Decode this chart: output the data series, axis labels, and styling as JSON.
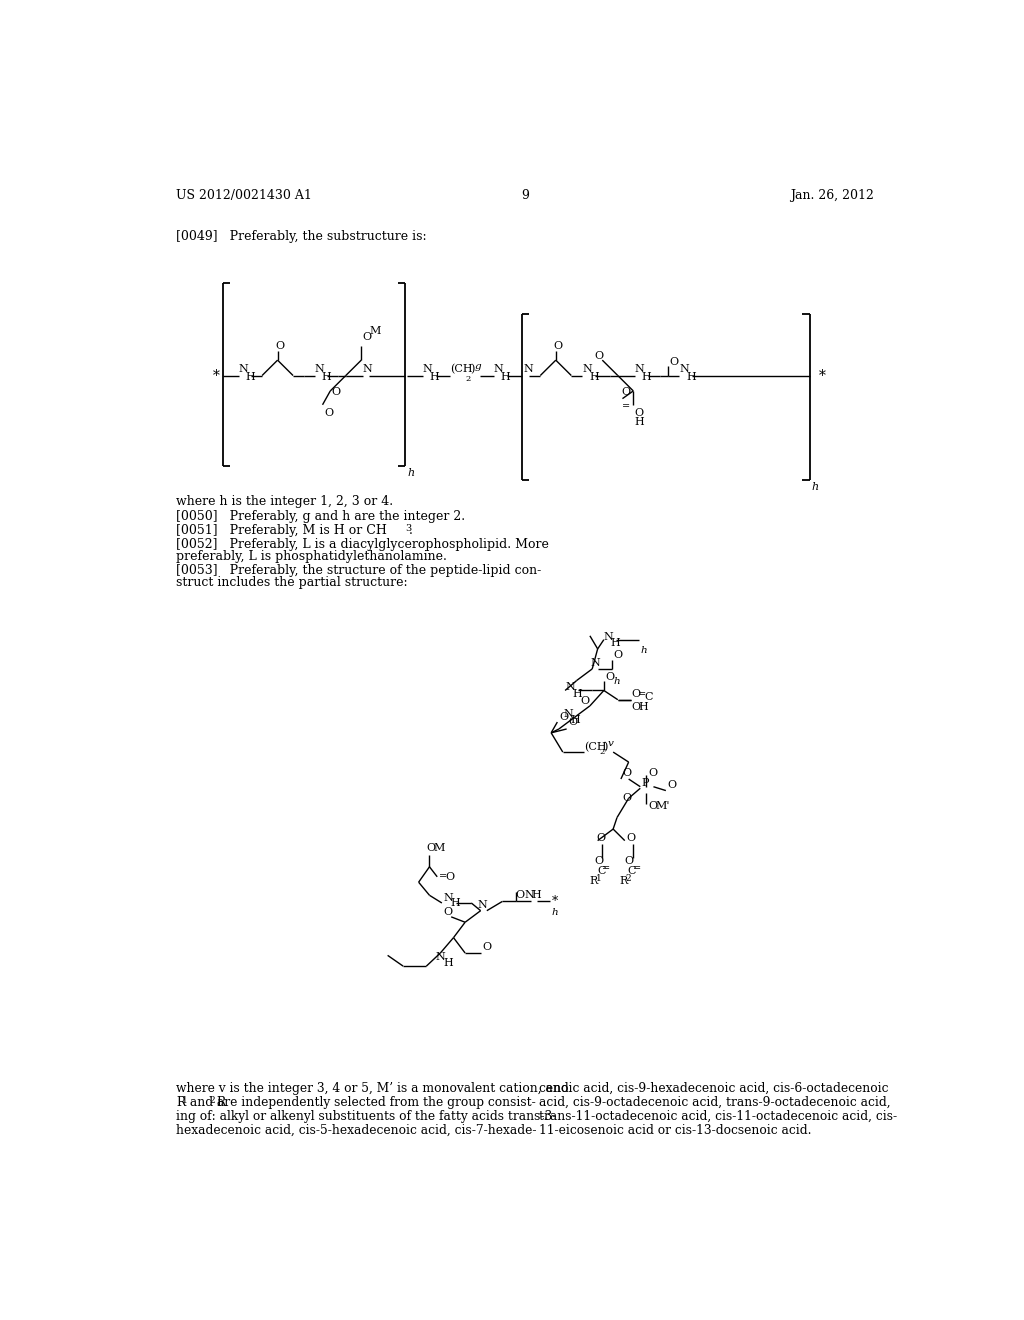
{
  "bg_color": "#ffffff",
  "header_left": "US 2012/0021430 A1",
  "header_center": "9",
  "header_right": "Jan. 26, 2012",
  "para_0049": "[0049]   Preferably, the substructure is:",
  "para_h_text": "where h is the integer 1, 2, 3 or 4.",
  "para_0050": "[0050]   Preferably, g and h are the integer 2.",
  "para_0051_a": "[0051]   Preferably, M is H or CH",
  "para_0051_b": "3",
  "para_0051_c": ".",
  "para_0052_1": "[0052]   Preferably, L is a diacylglycerophospholipid. More",
  "para_0052_2": "preferably, L is phosphatidylethanolamine.",
  "para_0053_1": "[0053]   Preferably, the structure of the peptide-lipid con-",
  "para_0053_2": "struct includes the partial structure:",
  "footer_left_1": "where v is the integer 3, 4 or 5, M’ is a monovalent cation, and",
  "footer_left_2": "R",
  "footer_left_2b": "1",
  "footer_left_2c": " and R",
  "footer_left_2d": "2",
  "footer_left_2e": " are independently selected from the group consist-",
  "footer_left_3": "ing of: alkyl or alkenyl substituents of the fatty acids trans-3-",
  "footer_left_4": "hexadecenoic acid, cis-5-hexadecenoic acid, cis-7-hexade-",
  "footer_right_1": "cenoic acid, cis-9-hexadecenoic acid, cis-6-octadecenoic",
  "footer_right_2": "acid, cis-9-octadecenoic acid, trans-9-octadecenoic acid,",
  "footer_right_3": "trans-11-octadecenoic acid, cis-11-octadecenoic acid, cis-",
  "footer_right_4": "11-eicosenoic acid or cis-13-docsenoic acid."
}
